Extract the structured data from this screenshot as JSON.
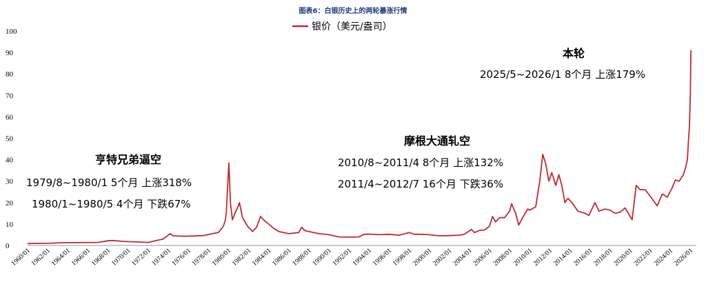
{
  "chart_data": {
    "type": "line",
    "title": "图表6：白银历史上的两轮暴涨行情",
    "xlabel": "",
    "ylabel": "",
    "ylim": [
      0,
      100
    ],
    "yticks": [
      "0",
      "10",
      "20",
      "30",
      "40",
      "50",
      "60",
      "70",
      "80",
      "90",
      "100"
    ],
    "xticks": [
      "1960/01",
      "1962/01",
      "1964/01",
      "1966/01",
      "1968/01",
      "1970/01",
      "1972/01",
      "1974/01",
      "1976/01",
      "1978/01",
      "1980/01",
      "1982/01",
      "1984/01",
      "1986/01",
      "1988/01",
      "1990/01",
      "1992/01",
      "1994/01",
      "1996/01",
      "1998/01",
      "2000/01",
      "2002/01",
      "2004/01",
      "2006/01",
      "2008/01",
      "2010/01",
      "2012/01",
      "2014/01",
      "2016/01",
      "2018/01",
      "2020/01",
      "2022/01",
      "2024/01",
      "2026/01"
    ],
    "legend": {
      "position": "top-center"
    },
    "grid": false,
    "series": [
      {
        "name": "银价（美元/盎司）",
        "color": "#c0282d",
        "points": [
          [
            1960.0,
            0.91
          ],
          [
            1962.0,
            1.0
          ],
          [
            1963.5,
            1.28
          ],
          [
            1967.0,
            1.4
          ],
          [
            1968.0,
            2.2
          ],
          [
            1968.5,
            2.3
          ],
          [
            1969.5,
            1.9
          ],
          [
            1971.0,
            1.6
          ],
          [
            1972.0,
            1.4
          ],
          [
            1973.0,
            2.5
          ],
          [
            1973.5,
            3.0
          ],
          [
            1974.2,
            5.5
          ],
          [
            1974.5,
            4.5
          ],
          [
            1975.5,
            4.3
          ],
          [
            1976.5,
            4.4
          ],
          [
            1977.5,
            4.6
          ],
          [
            1978.5,
            5.6
          ],
          [
            1979.0,
            6.0
          ],
          [
            1979.5,
            9.0
          ],
          [
            1979.7,
            12.0
          ],
          [
            1979.8,
            16.0
          ],
          [
            1979.9,
            26.0
          ],
          [
            1980.05,
            38.5
          ],
          [
            1980.2,
            20.0
          ],
          [
            1980.4,
            12.0
          ],
          [
            1980.6,
            14.5
          ],
          [
            1980.9,
            17.5
          ],
          [
            1981.1,
            20.0
          ],
          [
            1981.4,
            13.0
          ],
          [
            1981.9,
            9.0
          ],
          [
            1982.4,
            6.5
          ],
          [
            1982.8,
            8.5
          ],
          [
            1983.2,
            13.5
          ],
          [
            1983.6,
            11.5
          ],
          [
            1984.0,
            10.0
          ],
          [
            1984.5,
            8.0
          ],
          [
            1985.0,
            6.5
          ],
          [
            1986.0,
            5.5
          ],
          [
            1987.0,
            6.0
          ],
          [
            1987.3,
            8.5
          ],
          [
            1987.6,
            7.0
          ],
          [
            1988.0,
            6.5
          ],
          [
            1989.0,
            5.5
          ],
          [
            1990.0,
            5.0
          ],
          [
            1991.0,
            4.0
          ],
          [
            1992.0,
            3.9
          ],
          [
            1993.0,
            4.0
          ],
          [
            1993.5,
            5.2
          ],
          [
            1994.0,
            5.3
          ],
          [
            1995.0,
            5.0
          ],
          [
            1996.0,
            5.2
          ],
          [
            1997.0,
            4.8
          ],
          [
            1998.0,
            6.0
          ],
          [
            1998.5,
            5.2
          ],
          [
            1999.0,
            5.2
          ],
          [
            2000.0,
            5.0
          ],
          [
            2001.0,
            4.5
          ],
          [
            2002.0,
            4.6
          ],
          [
            2003.0,
            4.8
          ],
          [
            2003.5,
            5.2
          ],
          [
            2004.2,
            7.5
          ],
          [
            2004.5,
            6.0
          ],
          [
            2005.0,
            7.0
          ],
          [
            2005.5,
            7.2
          ],
          [
            2006.0,
            9.0
          ],
          [
            2006.3,
            13.5
          ],
          [
            2006.6,
            11.0
          ],
          [
            2007.0,
            13.0
          ],
          [
            2007.5,
            13.0
          ],
          [
            2008.0,
            16.0
          ],
          [
            2008.2,
            19.5
          ],
          [
            2008.6,
            15.0
          ],
          [
            2008.9,
            9.5
          ],
          [
            2009.3,
            13.0
          ],
          [
            2009.8,
            17.0
          ],
          [
            2010.0,
            16.5
          ],
          [
            2010.6,
            18.0
          ],
          [
            2011.0,
            30.0
          ],
          [
            2011.3,
            42.5
          ],
          [
            2011.6,
            38.0
          ],
          [
            2011.9,
            30.0
          ],
          [
            2012.2,
            34.0
          ],
          [
            2012.6,
            28.0
          ],
          [
            2012.9,
            33.0
          ],
          [
            2013.2,
            28.0
          ],
          [
            2013.5,
            20.0
          ],
          [
            2013.8,
            22.0
          ],
          [
            2014.2,
            20.0
          ],
          [
            2014.8,
            16.0
          ],
          [
            2015.5,
            15.0
          ],
          [
            2015.9,
            14.0
          ],
          [
            2016.5,
            20.0
          ],
          [
            2016.9,
            16.0
          ],
          [
            2017.5,
            17.0
          ],
          [
            2018.0,
            16.5
          ],
          [
            2018.5,
            15.0
          ],
          [
            2019.0,
            15.5
          ],
          [
            2019.5,
            17.5
          ],
          [
            2020.2,
            12.0
          ],
          [
            2020.6,
            28.0
          ],
          [
            2021.0,
            26.0
          ],
          [
            2021.5,
            26.0
          ],
          [
            2022.0,
            23.0
          ],
          [
            2022.7,
            18.5
          ],
          [
            2023.2,
            24.0
          ],
          [
            2023.7,
            22.5
          ],
          [
            2024.2,
            27.0
          ],
          [
            2024.5,
            30.5
          ],
          [
            2024.9,
            30.0
          ],
          [
            2025.3,
            33.0
          ],
          [
            2025.5,
            36.0
          ],
          [
            2025.7,
            40.0
          ],
          [
            2025.8,
            48.0
          ],
          [
            2025.9,
            55.0
          ],
          [
            2026.0,
            72.0
          ],
          [
            2026.05,
            91.0
          ]
        ]
      }
    ],
    "annotations": [
      {
        "head": "亨特兄弟逼空",
        "lines": [
          "1979/8~1980/1  5个月  上涨318%",
          "1980/1~1980/5  4个月  下跌67%"
        ]
      },
      {
        "head": "摩根大通轧空",
        "lines": [
          "2010/8~2011/4  8个月  上涨132%",
          "2011/4~2012/7  16个月  下跌36%"
        ]
      },
      {
        "head": "本轮",
        "lines": [
          "2025/5~2026/1  8个月  上涨179%"
        ]
      }
    ]
  }
}
